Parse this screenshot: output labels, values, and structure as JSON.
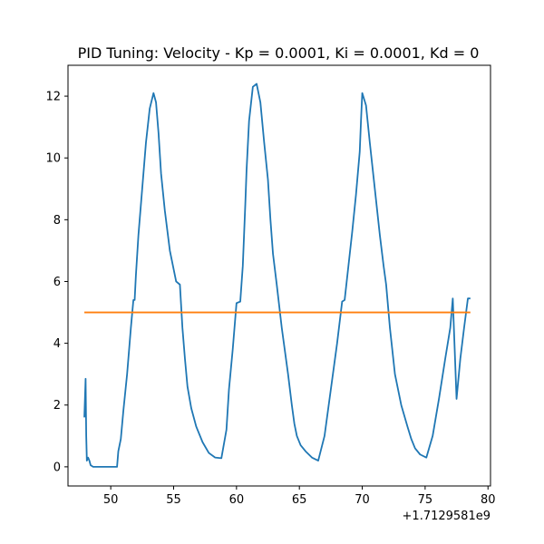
{
  "chart_data": {
    "type": "line",
    "title": "PID Tuning: Velocity - Kp = 0.0001, Ki = 0.0001, Kd = 0",
    "xlabel": "",
    "ylabel": "",
    "x_offset_label": "+1.7129581e9",
    "xlim": [
      46.6,
      80.2
    ],
    "ylim": [
      -0.62,
      13.0
    ],
    "x_ticks": [
      50,
      55,
      60,
      65,
      70,
      75,
      80
    ],
    "x_tick_labels": [
      "50",
      "55",
      "60",
      "65",
      "70",
      "75",
      "80"
    ],
    "y_ticks": [
      0,
      2,
      4,
      6,
      8,
      10,
      12
    ],
    "y_tick_labels": [
      "0",
      "2",
      "4",
      "6",
      "8",
      "10",
      "12"
    ],
    "grid": false,
    "legend": "none",
    "series": [
      {
        "color": "#1f77b4",
        "x": [
          47.9,
          48.0,
          48.05,
          48.1,
          48.2,
          48.3,
          48.4,
          48.6,
          49.0,
          49.5,
          50.0,
          50.5,
          50.6,
          50.8,
          51.0,
          51.3,
          51.6,
          51.8,
          51.9,
          52.0,
          52.2,
          52.5,
          52.8,
          53.1,
          53.4,
          53.6,
          53.8,
          54.0,
          54.3,
          54.7,
          55.2,
          55.5,
          55.7,
          55.9,
          56.1,
          56.4,
          56.8,
          57.3,
          57.8,
          58.3,
          58.8,
          59.2,
          59.4,
          59.7,
          60.0,
          60.3,
          60.5,
          60.6,
          60.7,
          60.8,
          61.0,
          61.3,
          61.6,
          61.9,
          62.2,
          62.5,
          62.7,
          62.9,
          63.2,
          63.6,
          64.1,
          64.4,
          64.6,
          64.8,
          65.1,
          65.5,
          66.0,
          66.5,
          67.0,
          67.5,
          68.0,
          68.4,
          68.6,
          68.9,
          69.2,
          69.5,
          69.8,
          69.9,
          70.0,
          70.3,
          70.6,
          71.0,
          71.4,
          71.7,
          71.9,
          72.2,
          72.6,
          73.1,
          73.6,
          73.9,
          74.2,
          74.6,
          75.1,
          75.6,
          76.1,
          76.6,
          77.0,
          77.2,
          77.5,
          77.8,
          78.1,
          78.4,
          78.6
        ],
        "values": [
          1.6,
          2.85,
          1.0,
          0.2,
          0.3,
          0.2,
          0.05,
          0.0,
          0.0,
          0.0,
          0.0,
          0.0,
          0.5,
          0.9,
          1.8,
          3.0,
          4.5,
          5.4,
          5.4,
          6.2,
          7.5,
          9.0,
          10.5,
          11.6,
          12.1,
          11.8,
          10.8,
          9.5,
          8.3,
          7.0,
          6.0,
          5.9,
          4.5,
          3.5,
          2.6,
          1.9,
          1.3,
          0.8,
          0.45,
          0.3,
          0.28,
          1.2,
          2.5,
          3.8,
          5.3,
          5.35,
          6.5,
          7.5,
          8.5,
          9.6,
          11.2,
          12.3,
          12.4,
          11.8,
          10.5,
          9.3,
          8.0,
          6.9,
          5.9,
          4.5,
          3.0,
          2.0,
          1.4,
          1.0,
          0.7,
          0.5,
          0.3,
          0.2,
          1.0,
          2.5,
          4.0,
          5.35,
          5.4,
          6.5,
          7.6,
          8.8,
          10.2,
          11.2,
          12.1,
          11.7,
          10.5,
          9.0,
          7.5,
          6.5,
          5.9,
          4.5,
          3.0,
          2.0,
          1.3,
          0.9,
          0.6,
          0.4,
          0.3,
          1.0,
          2.2,
          3.5,
          4.5,
          5.45,
          2.2,
          3.5,
          4.5,
          5.45,
          5.45
        ]
      },
      {
        "color": "#ff7f0e",
        "x": [
          47.9,
          78.6
        ],
        "values": [
          5.0,
          5.0
        ]
      }
    ]
  }
}
